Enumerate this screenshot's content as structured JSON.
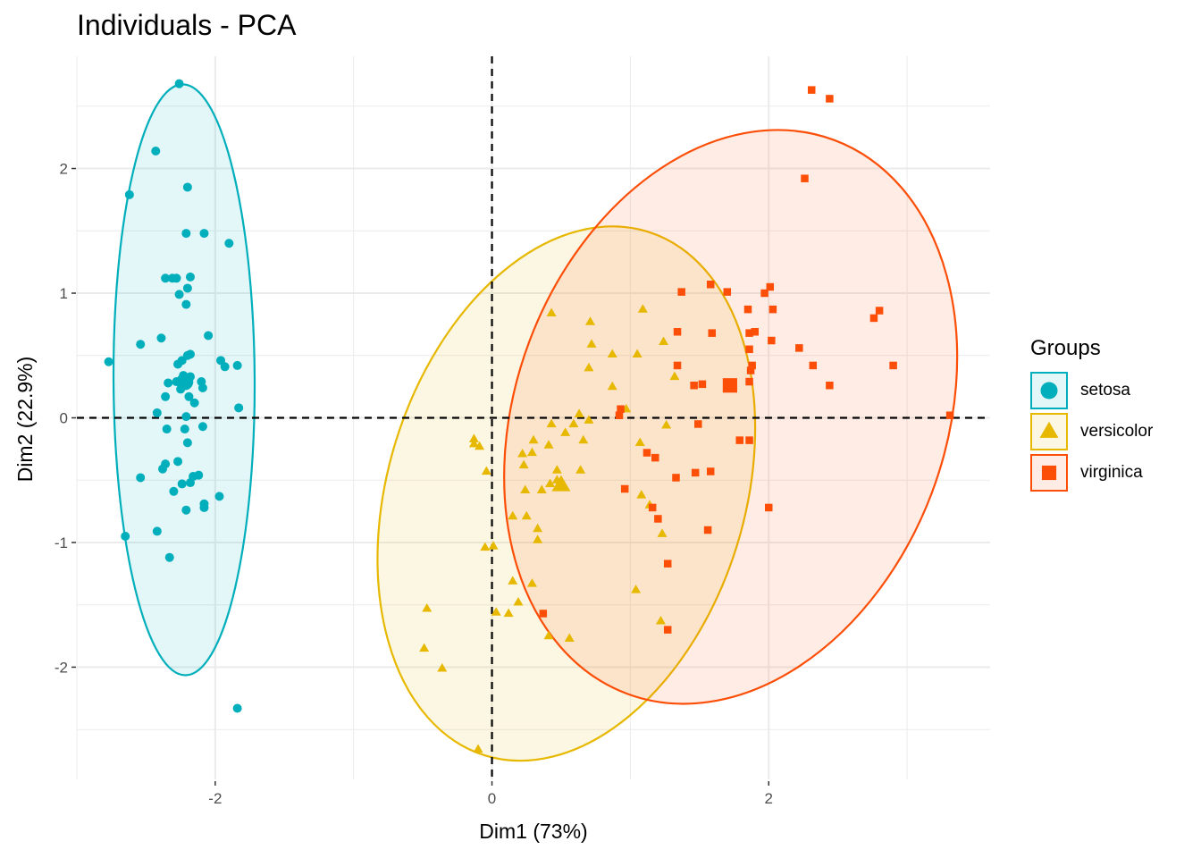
{
  "chart_data": {
    "type": "scatter",
    "title": "Individuals - PCA",
    "xlabel": "Dim1 (73%)",
    "ylabel": "Dim2 (22.9%)",
    "xlim": [
      -3.0,
      3.6
    ],
    "ylim": [
      -2.9,
      2.9
    ],
    "x_ticks": [
      -2,
      0,
      2
    ],
    "y_ticks": [
      -2,
      -1,
      0,
      1,
      2
    ],
    "grid": true,
    "reference_lines": {
      "x": 0,
      "y": 0,
      "style": "dashed"
    },
    "legend": {
      "title": "Groups",
      "position": "right"
    },
    "series": [
      {
        "name": "setosa",
        "color": "#00AFBB",
        "shape": "circle",
        "centroid": [
          -2.22,
          0.29
        ],
        "ellipse": [
          [
            -2.23,
            2.68
          ],
          [
            -1.72,
            0.3
          ],
          [
            -2.21,
            -2.06
          ],
          [
            -2.74,
            0.3
          ]
        ],
        "points": [
          [
            -2.26,
            2.68
          ],
          [
            -2.43,
            2.14
          ],
          [
            -2.62,
            1.79
          ],
          [
            -2.2,
            1.85
          ],
          [
            -2.21,
            1.48
          ],
          [
            -2.08,
            1.48
          ],
          [
            -1.9,
            1.4
          ],
          [
            -2.31,
            1.12
          ],
          [
            -2.28,
            1.12
          ],
          [
            -2.36,
            1.12
          ],
          [
            -2.18,
            1.13
          ],
          [
            -2.2,
            1.04
          ],
          [
            -2.26,
            0.99
          ],
          [
            -2.21,
            0.91
          ],
          [
            -2.54,
            0.59
          ],
          [
            -2.39,
            0.64
          ],
          [
            -2.05,
            0.66
          ],
          [
            -2.27,
            0.43
          ],
          [
            -2.24,
            0.46
          ],
          [
            -2.2,
            0.5
          ],
          [
            -2.18,
            0.51
          ],
          [
            -1.96,
            0.46
          ],
          [
            -1.93,
            0.41
          ],
          [
            -1.84,
            0.42
          ],
          [
            -2.77,
            0.45
          ],
          [
            -2.28,
            0.29
          ],
          [
            -2.23,
            0.34
          ],
          [
            -2.25,
            0.23
          ],
          [
            -2.21,
            0.31
          ],
          [
            -2.18,
            0.33
          ],
          [
            -2.09,
            0.24
          ],
          [
            -2.19,
            0.17
          ],
          [
            -2.36,
            0.17
          ],
          [
            -2.34,
            0.28
          ],
          [
            -2.1,
            0.29
          ],
          [
            -2.15,
            0.12
          ],
          [
            -2.42,
            0.04
          ],
          [
            -1.83,
            0.08
          ],
          [
            -2.21,
            0.01
          ],
          [
            -2.35,
            -0.09
          ],
          [
            -2.22,
            -0.09
          ],
          [
            -2.2,
            -0.2
          ],
          [
            -2.09,
            -0.07
          ],
          [
            -2.27,
            -0.35
          ],
          [
            -2.36,
            -0.37
          ],
          [
            -2.38,
            -0.41
          ],
          [
            -2.16,
            -0.47
          ],
          [
            -2.12,
            -0.46
          ],
          [
            -2.54,
            -0.48
          ],
          [
            -2.18,
            -0.52
          ],
          [
            -2.3,
            -0.59
          ],
          [
            -2.24,
            -0.53
          ],
          [
            -1.97,
            -0.63
          ],
          [
            -2.08,
            -0.69
          ],
          [
            -2.08,
            -0.72
          ],
          [
            -2.21,
            -0.74
          ],
          [
            -2.65,
            -0.95
          ],
          [
            -2.42,
            -0.91
          ],
          [
            -2.33,
            -1.12
          ],
          [
            -1.84,
            -2.33
          ]
        ]
      },
      {
        "name": "versicolor",
        "color": "#E7B800",
        "shape": "triangle",
        "centroid": [
          0.5,
          -0.54
        ],
        "ellipse": [
          [
            1.16,
            1.55
          ],
          [
            1.66,
            -0.03
          ],
          [
            -0.02,
            -2.65
          ],
          [
            -0.65,
            -1.3
          ]
        ],
        "points": [
          [
            0.43,
            0.84
          ],
          [
            0.71,
            0.77
          ],
          [
            1.09,
            0.87
          ],
          [
            0.72,
            0.59
          ],
          [
            1.24,
            0.61
          ],
          [
            1.05,
            0.51
          ],
          [
            0.87,
            0.51
          ],
          [
            0.7,
            0.4
          ],
          [
            1.32,
            0.33
          ],
          [
            0.87,
            0.25
          ],
          [
            0.97,
            0.07
          ],
          [
            0.63,
            0.03
          ],
          [
            0.7,
            -0.02
          ],
          [
            0.59,
            -0.05
          ],
          [
            1.26,
            -0.06
          ],
          [
            0.43,
            -0.05
          ],
          [
            0.53,
            -0.12
          ],
          [
            0.66,
            -0.18
          ],
          [
            0.3,
            -0.18
          ],
          [
            0.41,
            -0.22
          ],
          [
            1.07,
            -0.2
          ],
          [
            -0.09,
            -0.23
          ],
          [
            -0.13,
            -0.17
          ],
          [
            -0.13,
            -0.21
          ],
          [
            0.22,
            -0.29
          ],
          [
            0.23,
            -0.38
          ],
          [
            0.29,
            -0.28
          ],
          [
            0.47,
            -0.42
          ],
          [
            0.64,
            -0.42
          ],
          [
            0.47,
            -0.5
          ],
          [
            0.5,
            -0.54
          ],
          [
            0.42,
            -0.53
          ],
          [
            0.36,
            -0.58
          ],
          [
            -0.04,
            -0.43
          ],
          [
            0.24,
            -0.58
          ],
          [
            0.15,
            -0.79
          ],
          [
            0.25,
            -0.79
          ],
          [
            1.08,
            -0.62
          ],
          [
            1.14,
            -0.7
          ],
          [
            0.33,
            -0.89
          ],
          [
            0.33,
            -0.98
          ],
          [
            1.23,
            -0.93
          ],
          [
            -0.05,
            -1.04
          ],
          [
            0.01,
            -1.03
          ],
          [
            0.15,
            -1.31
          ],
          [
            0.29,
            -1.33
          ],
          [
            1.04,
            -1.38
          ],
          [
            0.19,
            -1.48
          ],
          [
            0.12,
            -1.57
          ],
          [
            0.03,
            -1.56
          ],
          [
            0.41,
            -1.75
          ],
          [
            0.56,
            -1.77
          ],
          [
            1.22,
            -1.63
          ],
          [
            -0.47,
            -1.53
          ],
          [
            -0.49,
            -1.85
          ],
          [
            -0.36,
            -2.01
          ],
          [
            -0.1,
            -2.66
          ]
        ]
      },
      {
        "name": "virginica",
        "color": "#FC4E07",
        "shape": "square",
        "centroid": [
          1.72,
          0.26
        ],
        "ellipse": [
          [
            2.48,
            2.48
          ],
          [
            3.13,
            0.48
          ],
          [
            0.98,
            -1.96
          ],
          [
            0.31,
            -0.97
          ]
        ],
        "points": [
          [
            2.31,
            2.63
          ],
          [
            2.44,
            2.56
          ],
          [
            2.26,
            1.92
          ],
          [
            1.37,
            1.01
          ],
          [
            1.58,
            1.07
          ],
          [
            1.7,
            1.01
          ],
          [
            1.97,
            1.0
          ],
          [
            2.01,
            1.05
          ],
          [
            1.85,
            0.87
          ],
          [
            2.03,
            0.87
          ],
          [
            2.76,
            0.8
          ],
          [
            2.8,
            0.86
          ],
          [
            1.34,
            0.69
          ],
          [
            1.59,
            0.68
          ],
          [
            1.86,
            0.68
          ],
          [
            1.9,
            0.69
          ],
          [
            2.02,
            0.62
          ],
          [
            2.22,
            0.56
          ],
          [
            1.86,
            0.55
          ],
          [
            1.34,
            0.42
          ],
          [
            1.88,
            0.42
          ],
          [
            1.87,
            0.38
          ],
          [
            2.32,
            0.42
          ],
          [
            2.9,
            0.42
          ],
          [
            1.46,
            0.26
          ],
          [
            1.52,
            0.27
          ],
          [
            1.86,
            0.29
          ],
          [
            2.44,
            0.26
          ],
          [
            1.71,
            0.26
          ],
          [
            1.72,
            0.27
          ],
          [
            0.93,
            0.07
          ],
          [
            0.92,
            0.02
          ],
          [
            1.49,
            -0.05
          ],
          [
            3.31,
            0.02
          ],
          [
            1.12,
            -0.28
          ],
          [
            1.18,
            -0.32
          ],
          [
            1.79,
            -0.18
          ],
          [
            1.86,
            -0.18
          ],
          [
            1.47,
            -0.44
          ],
          [
            1.58,
            -0.43
          ],
          [
            1.33,
            -0.48
          ],
          [
            0.96,
            -0.57
          ],
          [
            1.16,
            -0.72
          ],
          [
            1.2,
            -0.81
          ],
          [
            2.0,
            -0.72
          ],
          [
            1.56,
            -0.9
          ],
          [
            1.27,
            -1.17
          ],
          [
            0.37,
            -1.57
          ],
          [
            1.27,
            -1.7
          ]
        ]
      }
    ]
  }
}
